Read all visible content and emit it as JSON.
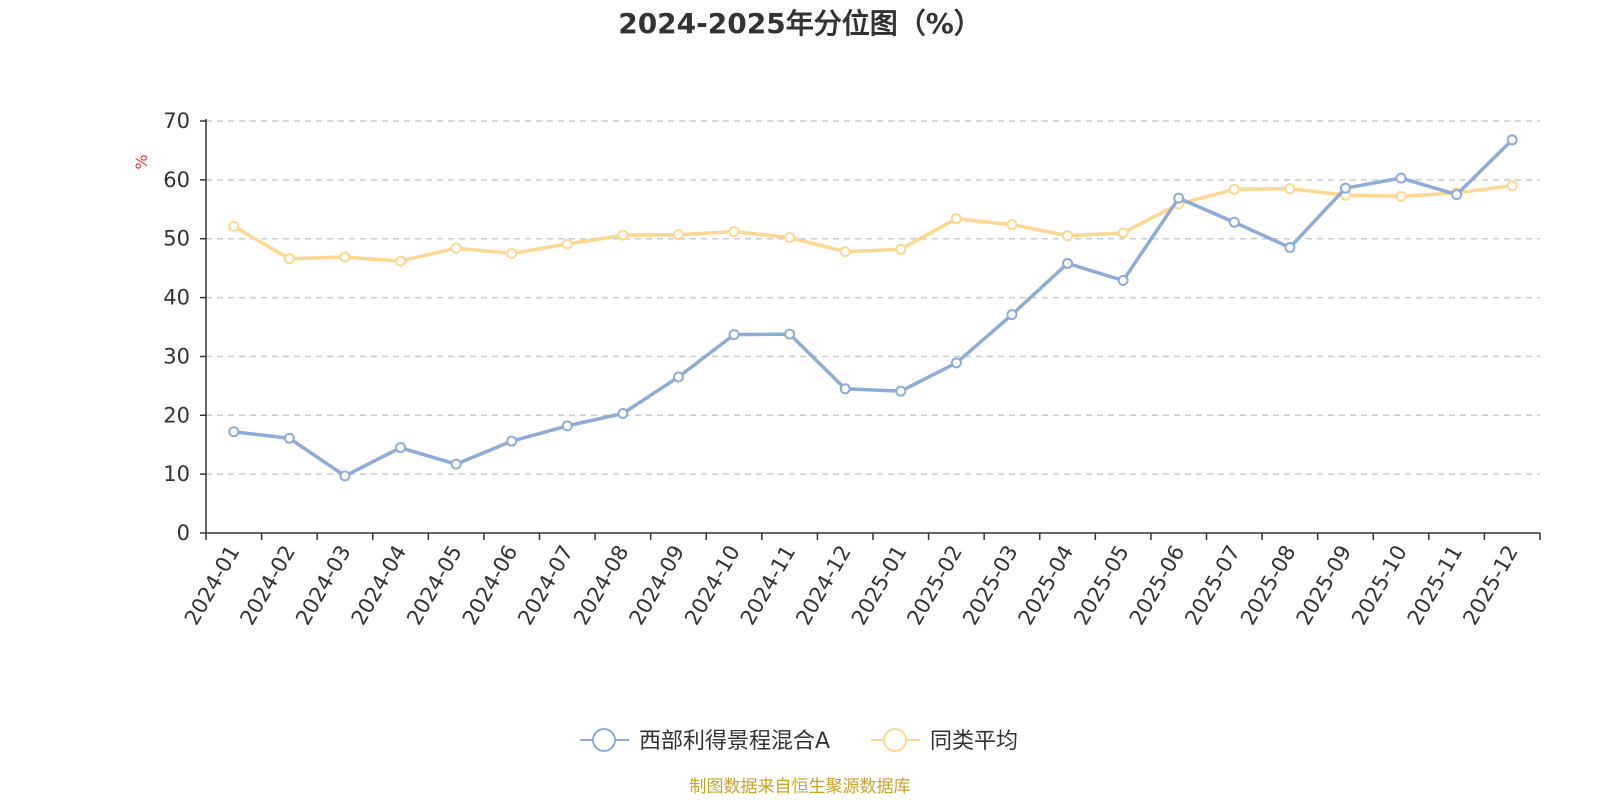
{
  "chart_data": {
    "type": "line",
    "title": "2024-2025年分位图（%）",
    "y_unit": "%",
    "x": [
      "2024-01",
      "2024-02",
      "2024-03",
      "2024-04",
      "2024-05",
      "2024-06",
      "2024-07",
      "2024-08",
      "2024-09",
      "2024-10",
      "2024-11",
      "2024-12",
      "2025-01",
      "2025-02",
      "2025-03",
      "2025-04",
      "2025-05",
      "2025-06",
      "2025-07",
      "2025-08",
      "2025-09",
      "2025-10",
      "2025-11",
      "2025-12"
    ],
    "series": [
      {
        "name": "西部利得景程混合A",
        "color": "#8eacda",
        "values": [
          17.2,
          16.1,
          9.7,
          14.5,
          11.7,
          15.6,
          18.2,
          20.3,
          26.5,
          33.7,
          33.8,
          24.5,
          24.1,
          28.9,
          37.1,
          45.8,
          42.9,
          56.9,
          52.8,
          48.5,
          58.6,
          60.3,
          57.5,
          66.8
        ]
      },
      {
        "name": "同类平均",
        "color": "#fcd891",
        "values": [
          52.1,
          46.6,
          46.9,
          46.2,
          48.4,
          47.5,
          49.1,
          50.6,
          50.7,
          51.2,
          50.2,
          47.8,
          48.2,
          53.4,
          52.4,
          50.5,
          51.0,
          55.9,
          58.4,
          58.5,
          57.4,
          57.2,
          57.8,
          59.0
        ]
      }
    ],
    "yticks": [
      0,
      10,
      20,
      30,
      40,
      50,
      60,
      70
    ],
    "ylim": [
      0,
      70
    ],
    "grid": true,
    "legend_position": "bottom-center"
  },
  "colors": {
    "unit": "#e8382c",
    "source": "#c9a227",
    "axis": "#333333",
    "grid": "#cccccc"
  },
  "source_text": "制图数据来自恒生聚源数据库"
}
